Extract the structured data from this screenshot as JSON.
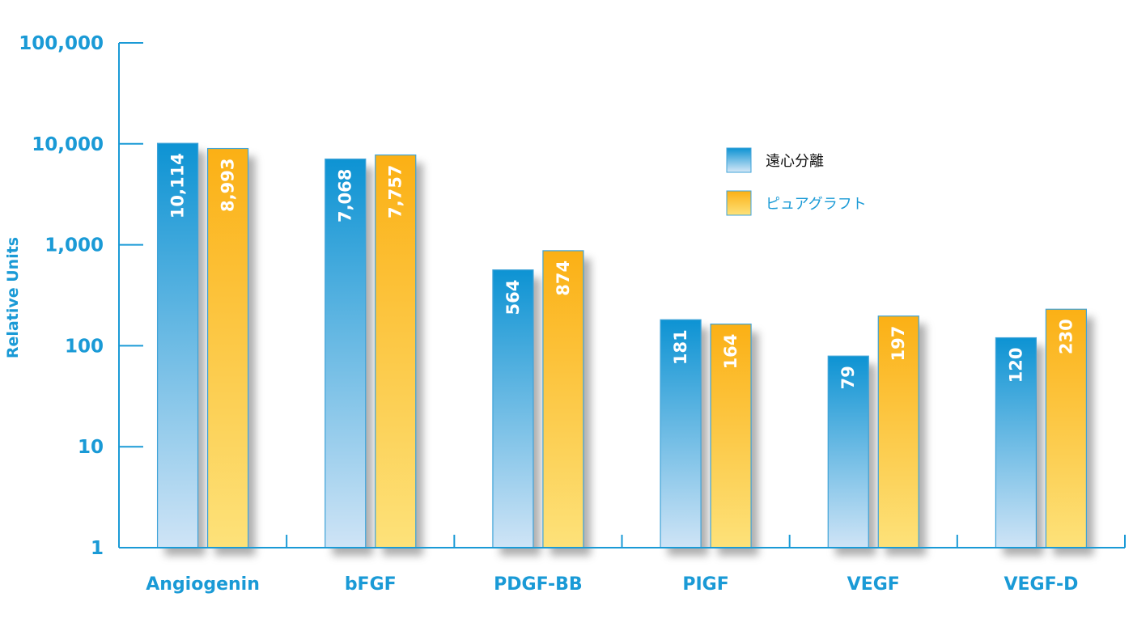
{
  "chart_data": {
    "type": "bar",
    "scale": "log",
    "ylabel": "Relative Units",
    "ylim": [
      1,
      100000
    ],
    "yticks": [
      "1",
      "10",
      "100",
      "1,000",
      "10,000",
      "100,000"
    ],
    "categories": [
      "Angiogenin",
      "bFGF",
      "PDGF-BB",
      "PIGF",
      "VEGF",
      "VEGF-D"
    ],
    "series": [
      {
        "name": "遠心分離",
        "color": "#1a9ad6",
        "values": [
          10114,
          7068,
          564,
          181,
          79,
          120
        ],
        "labels": [
          "10,114",
          "7,068",
          "564",
          "181",
          "79",
          "120"
        ]
      },
      {
        "name": "ピュアグラフト",
        "color": "#fbb41a",
        "values": [
          8993,
          7757,
          874,
          164,
          197,
          230
        ],
        "labels": [
          "8,993",
          "7,757",
          "874",
          "164",
          "197",
          "230"
        ]
      }
    ],
    "legend": "top-right",
    "grid": false
  }
}
